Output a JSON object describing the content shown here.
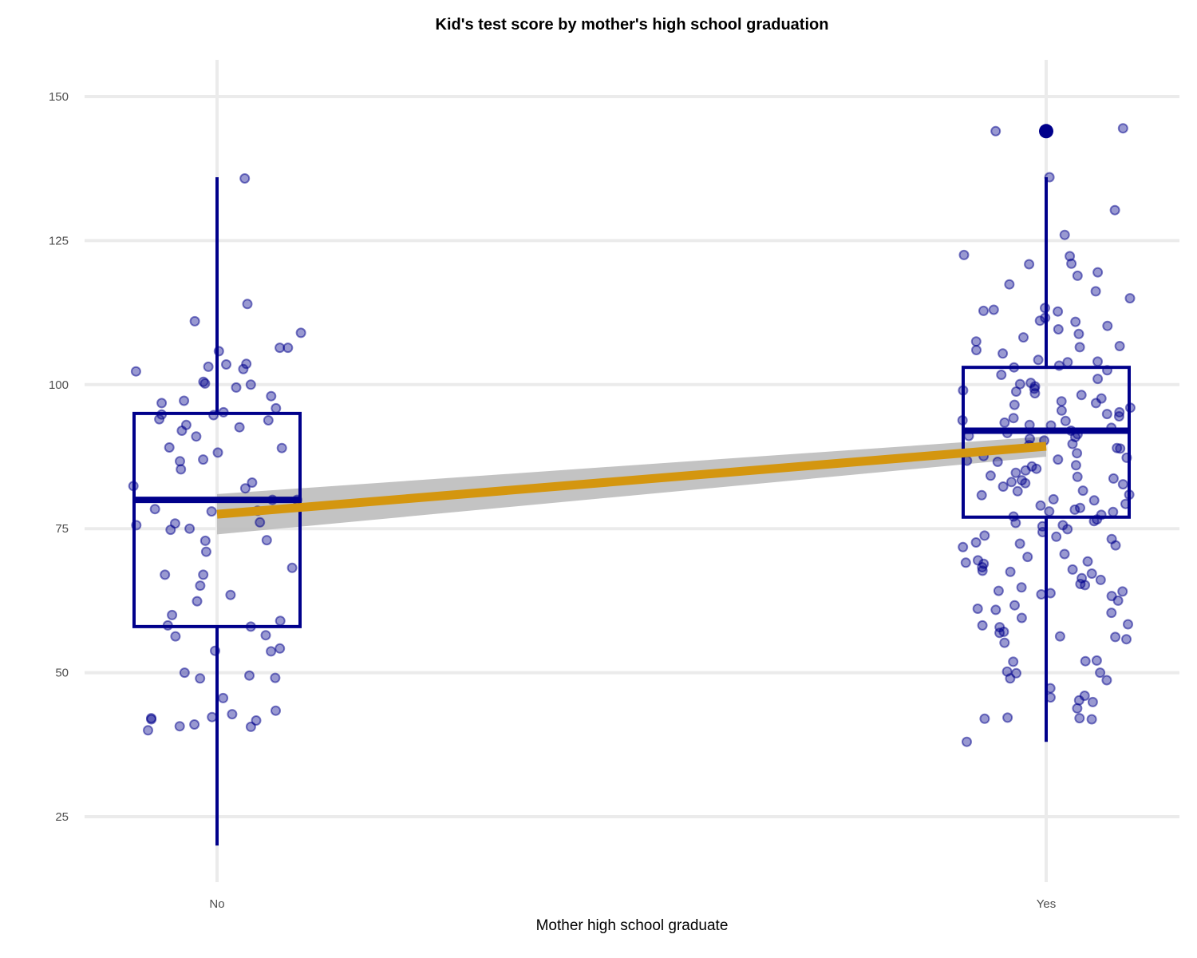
{
  "chart_data": {
    "type": "box",
    "title": "Kid's test score by mother's high school graduation",
    "xlabel": "Mother high school graduate",
    "ylabel": "",
    "categories": [
      "No",
      "Yes"
    ],
    "ylim": [
      15,
      158
    ],
    "yticks": [
      25,
      50,
      75,
      100,
      125,
      150
    ],
    "grid": true,
    "legend": "none",
    "colors": {
      "box": "#00008b",
      "points": "#00008b",
      "trend_line": "#d4960f",
      "confidence_band": "#bdbdbd",
      "grid": "#ebebeb"
    },
    "boxplots": [
      {
        "category": "No",
        "whisker_low": 20,
        "q1": 58,
        "median": 80,
        "q3": 95,
        "whisker_high": 136,
        "outliers": []
      },
      {
        "category": "Yes",
        "whisker_low": 38,
        "q1": 77,
        "median": 92,
        "q3": 103,
        "whisker_high": 136,
        "outliers": [
          144
        ]
      }
    ],
    "trend": {
      "method": "linear",
      "start": {
        "category": "No",
        "y": 77.5,
        "ci": [
          74,
          81
        ]
      },
      "end": {
        "category": "Yes",
        "y": 89.3,
        "ci": [
          87.5,
          91
        ]
      }
    },
    "jitter_points": [
      {
        "category": "No",
        "values": [
          102.7,
          97.2,
          92.6,
          109,
          114,
          103.6,
          94.8,
          89,
          83,
          80,
          78.1,
          75,
          73,
          67,
          63.5,
          60,
          58.2,
          56.5,
          54.2,
          49.1,
          41.9,
          42.3,
          41.7,
          41,
          40.7,
          111,
          106.4,
          106.4,
          100.5,
          100.2,
          98,
          96.8,
          94,
          93,
          91,
          88.2,
          80,
          78,
          76.1,
          74.8,
          71,
          59,
          53.7,
          50,
          45.6,
          43.4,
          40.6,
          42.1,
          42.8,
          40,
          49.5,
          49,
          58,
          56.3,
          62.4,
          65.1,
          67,
          68.2,
          72.9,
          75.6,
          75.9,
          78.4,
          82,
          82.4,
          85.3,
          86.7,
          87,
          89.1,
          93.8,
          94.7,
          95.2,
          95.9,
          99.5,
          100,
          102.3,
          103.5,
          103.1,
          105.8,
          135.8,
          92,
          53.8
        ]
      },
      {
        "category": "Yes",
        "values": [
          144.5,
          144,
          136,
          130.3,
          126,
          122.5,
          122.3,
          121,
          120.9,
          119.5,
          118.9,
          117.4,
          116.2,
          115,
          113.3,
          113,
          112.7,
          110.9,
          110.2,
          109.6,
          108.8,
          107.5,
          106.7,
          106,
          105.4,
          104.3,
          104,
          103,
          102.5,
          101.7,
          101,
          100.3,
          99.3,
          99,
          98.8,
          98.2,
          97.6,
          96.8,
          96,
          95.5,
          94.9,
          94.2,
          93.8,
          93.4,
          92.9,
          92,
          91.4,
          90.9,
          90.3,
          89.7,
          89,
          88.1,
          87.6,
          87,
          86.6,
          86,
          85.4,
          84.7,
          84,
          83.4,
          82.9,
          82.3,
          81.5,
          80.8,
          80.1,
          79.3,
          78.6,
          78,
          77.4,
          76.6,
          76,
          75.4,
          74.4,
          73.8,
          73.2,
          72.4,
          71.8,
          70.6,
          70.1,
          69.5,
          68.9,
          68.3,
          67.7,
          67.2,
          66.4,
          65.4,
          64.8,
          64.2,
          63.6,
          62.5,
          61.7,
          61.1,
          60.4,
          59.5,
          58.4,
          57.9,
          57.1,
          56.3,
          55.8,
          55.2,
          52,
          51.9,
          50,
          49,
          47.3,
          46,
          45.7,
          45.2,
          43.8,
          42.2,
          42,
          41.9,
          38,
          112.8,
          111.6,
          111.1,
          108.2,
          106.5,
          103.9,
          103.3,
          100.1,
          99.7,
          98.5,
          97.1,
          96.5,
          95.2,
          94.5,
          93.7,
          93,
          92.5,
          91.6,
          91.1,
          90.6,
          89.5,
          88.9,
          87.3,
          86.8,
          85.8,
          85.1,
          84.2,
          83.7,
          83.1,
          82.7,
          81.6,
          80.9,
          79.9,
          79,
          78.3,
          77.9,
          77.1,
          76.3,
          75.6,
          74.9,
          73.6,
          72.6,
          72.1,
          69.3,
          69.1,
          67.9,
          67.5,
          66.1,
          65.2,
          64.1,
          63.8,
          63.3,
          60.9,
          58.2,
          56.9,
          56.2,
          52.1,
          50.2,
          49.9,
          48.7,
          44.9,
          42.1
        ]
      }
    ]
  }
}
